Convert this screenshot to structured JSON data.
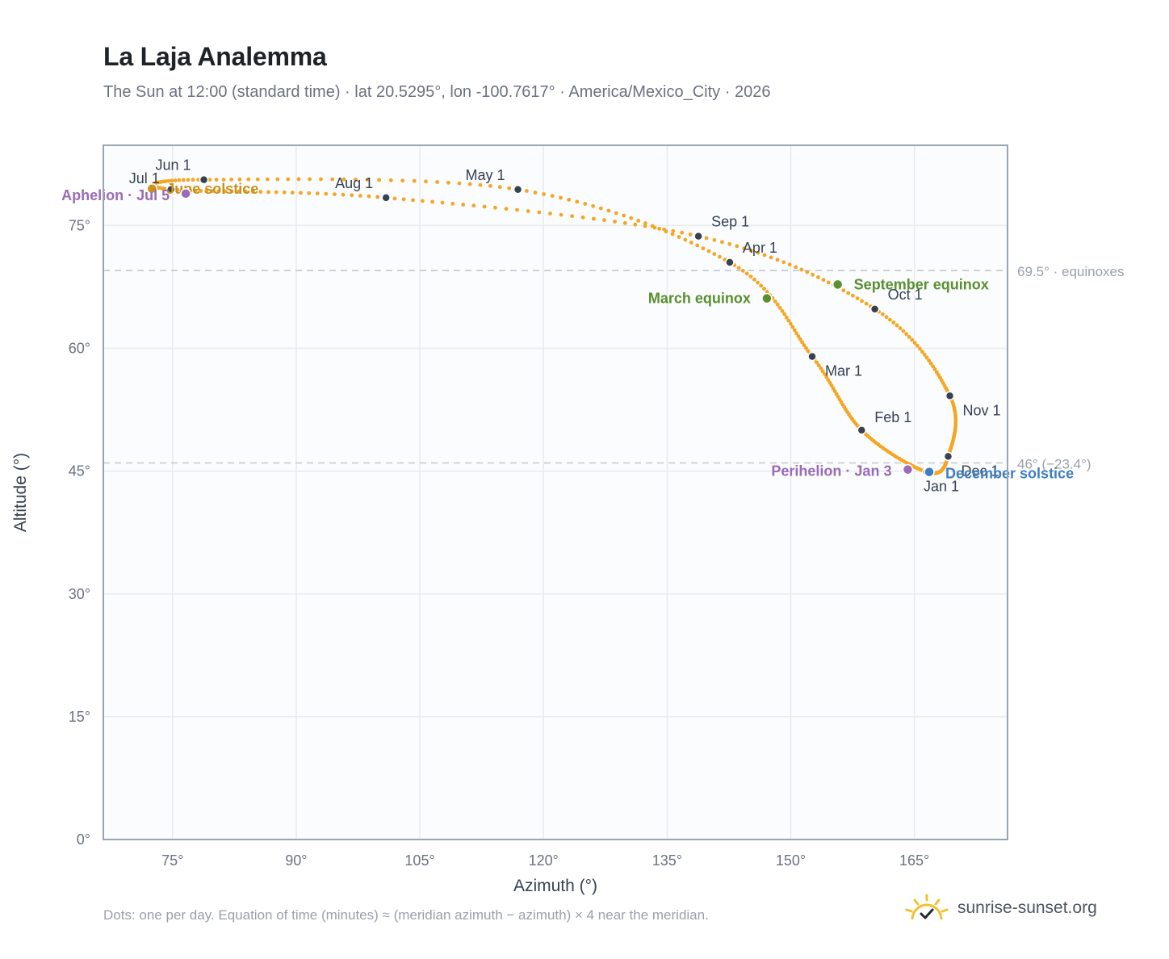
{
  "title": "La Laja Analemma",
  "subtitle": "The Sun at 12:00 (standard time) · lat 20.5295°, lon -100.7617° · America/Mexico_City · 2026",
  "footnote": "Dots: one per day. Equation of time (minutes) ≈ (meridian azimuth − azimuth) × 4 near the meridian.",
  "brand": {
    "text": "sunrise-sunset.org",
    "icon": "sun-icon"
  },
  "chart_data": {
    "type": "scatter",
    "xlabel": "Azimuth (°)",
    "ylabel": "Altitude (°)",
    "xlim": [
      66.6,
      176.3
    ],
    "ylim": [
      0,
      84.8
    ],
    "x_ticks": [
      {
        "value": 75,
        "label": "75°"
      },
      {
        "value": 90,
        "label": "90°"
      },
      {
        "value": 105,
        "label": "105°"
      },
      {
        "value": 120,
        "label": "120°"
      },
      {
        "value": 135,
        "label": "135°"
      },
      {
        "value": 150,
        "label": "150°"
      },
      {
        "value": 165,
        "label": "165°"
      }
    ],
    "y_ticks": [
      {
        "value": 0,
        "label": "0°"
      },
      {
        "value": 15,
        "label": "15°"
      },
      {
        "value": 30,
        "label": "30°"
      },
      {
        "value": 45,
        "label": "45°"
      },
      {
        "value": 60,
        "label": "60°"
      },
      {
        "value": 75,
        "label": "75°"
      }
    ],
    "grid": true,
    "colors": {
      "path": "#f5a623",
      "month": "#374151",
      "equinox": "#5a8f2e",
      "solstice_jun": "#c9921c",
      "solstice_dec": "#3f7fbf",
      "apsis": "#9b6bb5",
      "ref": "#c3c9d2"
    },
    "reference_lines": [
      {
        "y": 69.5,
        "label": "69.5° · equinoxes"
      },
      {
        "y": 46,
        "label": "46° (−23.4°)"
      }
    ],
    "months": [
      {
        "label": "Jan 1",
        "az": 166.5,
        "alt": 44.9
      },
      {
        "label": "Feb 1",
        "az": 158.6,
        "alt": 50.0
      },
      {
        "label": "Mar 1",
        "az": 152.6,
        "alt": 59.0
      },
      {
        "label": "Apr 1",
        "az": 142.6,
        "alt": 70.5
      },
      {
        "label": "May 1",
        "az": 116.9,
        "alt": 79.4
      },
      {
        "label": "Jun 1",
        "az": 78.8,
        "alt": 80.6
      },
      {
        "label": "Jul 1",
        "az": 74.8,
        "alt": 79.4
      },
      {
        "label": "Aug 1",
        "az": 100.9,
        "alt": 78.4
      },
      {
        "label": "Sep 1",
        "az": 138.8,
        "alt": 73.7
      },
      {
        "label": "Oct 1",
        "az": 160.2,
        "alt": 64.8
      },
      {
        "label": "Nov 1",
        "az": 169.3,
        "alt": 54.2
      },
      {
        "label": "Dec 1",
        "az": 169.1,
        "alt": 46.8
      }
    ],
    "events": [
      {
        "label": "March equinox",
        "az": 147.1,
        "alt": 66.1,
        "color": "#5a8f2e"
      },
      {
        "label": "September equinox",
        "az": 155.7,
        "alt": 67.8,
        "color": "#5a8f2e"
      },
      {
        "label": "June solstice",
        "az": 72.5,
        "alt": 79.5,
        "color": "#c9921c"
      },
      {
        "label": "December solstice",
        "az": 166.8,
        "alt": 44.9,
        "color": "#3f7fbf"
      },
      {
        "label": "Aphelion · Jul 5",
        "az": 76.6,
        "alt": 78.9,
        "color": "#9b6bb5"
      },
      {
        "label": "Perihelion · Jan 3",
        "az": 164.2,
        "alt": 45.2,
        "color": "#9b6bb5"
      }
    ]
  }
}
